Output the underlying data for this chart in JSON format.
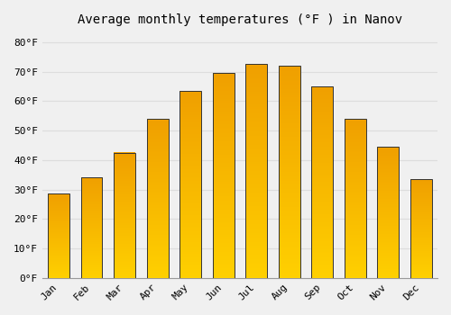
{
  "title": "Average monthly temperatures (°F ) in Nanov",
  "months": [
    "Jan",
    "Feb",
    "Mar",
    "Apr",
    "May",
    "Jun",
    "Jul",
    "Aug",
    "Sep",
    "Oct",
    "Nov",
    "Dec"
  ],
  "values": [
    28.5,
    34.0,
    42.5,
    54.0,
    63.5,
    69.5,
    72.5,
    72.0,
    65.0,
    54.0,
    44.5,
    33.5
  ],
  "bar_color_bottom": "#FFD000",
  "bar_color_top": "#F0A000",
  "bar_edge_color": "#333333",
  "background_color": "#F0F0F0",
  "grid_color": "#DDDDDD",
  "ylim": [
    0,
    83
  ],
  "yticks": [
    0,
    10,
    20,
    30,
    40,
    50,
    60,
    70,
    80
  ],
  "title_fontsize": 10,
  "tick_fontsize": 8,
  "font_family": "monospace"
}
